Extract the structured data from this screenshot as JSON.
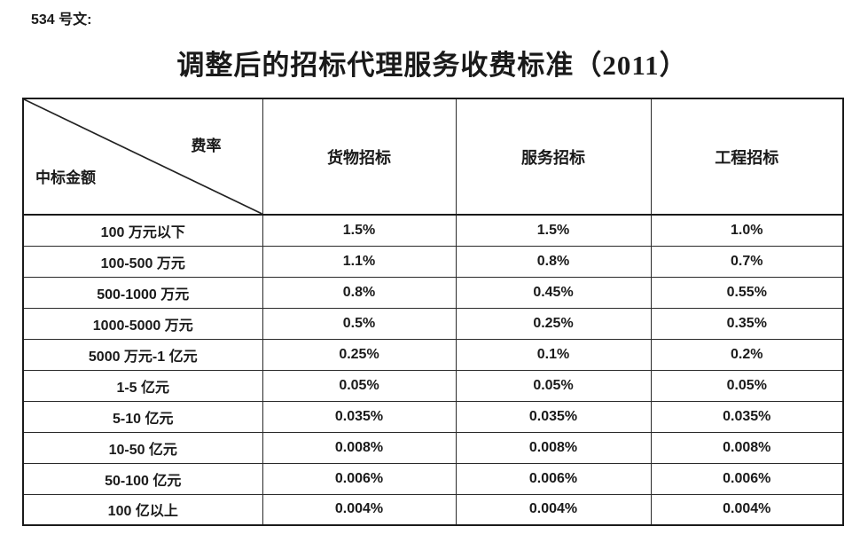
{
  "document": {
    "label": "534 号文:",
    "title": "调整后的招标代理服务收费标准（2011）"
  },
  "table": {
    "corner": {
      "axis_col": "费率",
      "axis_row": "中标金额"
    },
    "columns": [
      "货物招标",
      "服务招标",
      "工程招标"
    ],
    "rows": [
      {
        "amount": "100 万元以下",
        "values": [
          "1.5%",
          "1.5%",
          "1.0%"
        ]
      },
      {
        "amount": "100-500 万元",
        "values": [
          "1.1%",
          "0.8%",
          "0.7%"
        ]
      },
      {
        "amount": "500-1000 万元",
        "values": [
          "0.8%",
          "0.45%",
          "0.55%"
        ]
      },
      {
        "amount": "1000-5000 万元",
        "values": [
          "0.5%",
          "0.25%",
          "0.35%"
        ]
      },
      {
        "amount": "5000 万元-1 亿元",
        "values": [
          "0.25%",
          "0.1%",
          "0.2%"
        ]
      },
      {
        "amount": "1-5 亿元",
        "values": [
          "0.05%",
          "0.05%",
          "0.05%"
        ]
      },
      {
        "amount": "5-10 亿元",
        "values": [
          "0.035%",
          "0.035%",
          "0.035%"
        ]
      },
      {
        "amount": "10-50 亿元",
        "values": [
          "0.008%",
          "0.008%",
          "0.008%"
        ]
      },
      {
        "amount": "50-100 亿元",
        "values": [
          "0.006%",
          "0.006%",
          "0.006%"
        ]
      },
      {
        "amount": "100 亿以上",
        "values": [
          "0.004%",
          "0.004%",
          "0.004%"
        ]
      }
    ]
  },
  "colors": {
    "text": "#1a1a1a",
    "border": "#2a2a2a",
    "background": "#ffffff"
  }
}
